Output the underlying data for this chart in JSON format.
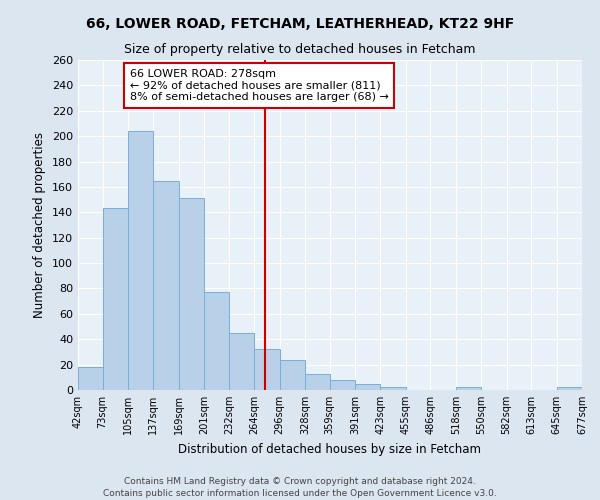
{
  "title1": "66, LOWER ROAD, FETCHAM, LEATHERHEAD, KT22 9HF",
  "title2": "Size of property relative to detached houses in Fetcham",
  "xlabel": "Distribution of detached houses by size in Fetcham",
  "ylabel": "Number of detached properties",
  "bar_edges": [
    42,
    73,
    105,
    137,
    169,
    201,
    232,
    264,
    296,
    328,
    359,
    391,
    423,
    455,
    486,
    518,
    550,
    582,
    613,
    645,
    677
  ],
  "bar_heights": [
    18,
    143,
    204,
    165,
    151,
    77,
    45,
    32,
    24,
    13,
    8,
    5,
    2,
    0,
    0,
    2,
    0,
    0,
    0,
    2
  ],
  "bar_color": "#b8d0e8",
  "bar_edge_color": "#7aaed6",
  "property_value": 278,
  "vline_color": "#cc0000",
  "ylim": [
    0,
    260
  ],
  "yticks": [
    0,
    20,
    40,
    60,
    80,
    100,
    120,
    140,
    160,
    180,
    200,
    220,
    240,
    260
  ],
  "annotation_text_line1": "66 LOWER ROAD: 278sqm",
  "annotation_text_line2": "← 92% of detached houses are smaller (811)",
  "annotation_text_line3": "8% of semi-detached houses are larger (68) →",
  "footnote1": "Contains HM Land Registry data © Crown copyright and database right 2024.",
  "footnote2": "Contains public sector information licensed under the Open Government Licence v3.0.",
  "bg_color": "#dce6f0",
  "plot_bg_color": "#e8f0f8",
  "grid_color": "#ffffff"
}
